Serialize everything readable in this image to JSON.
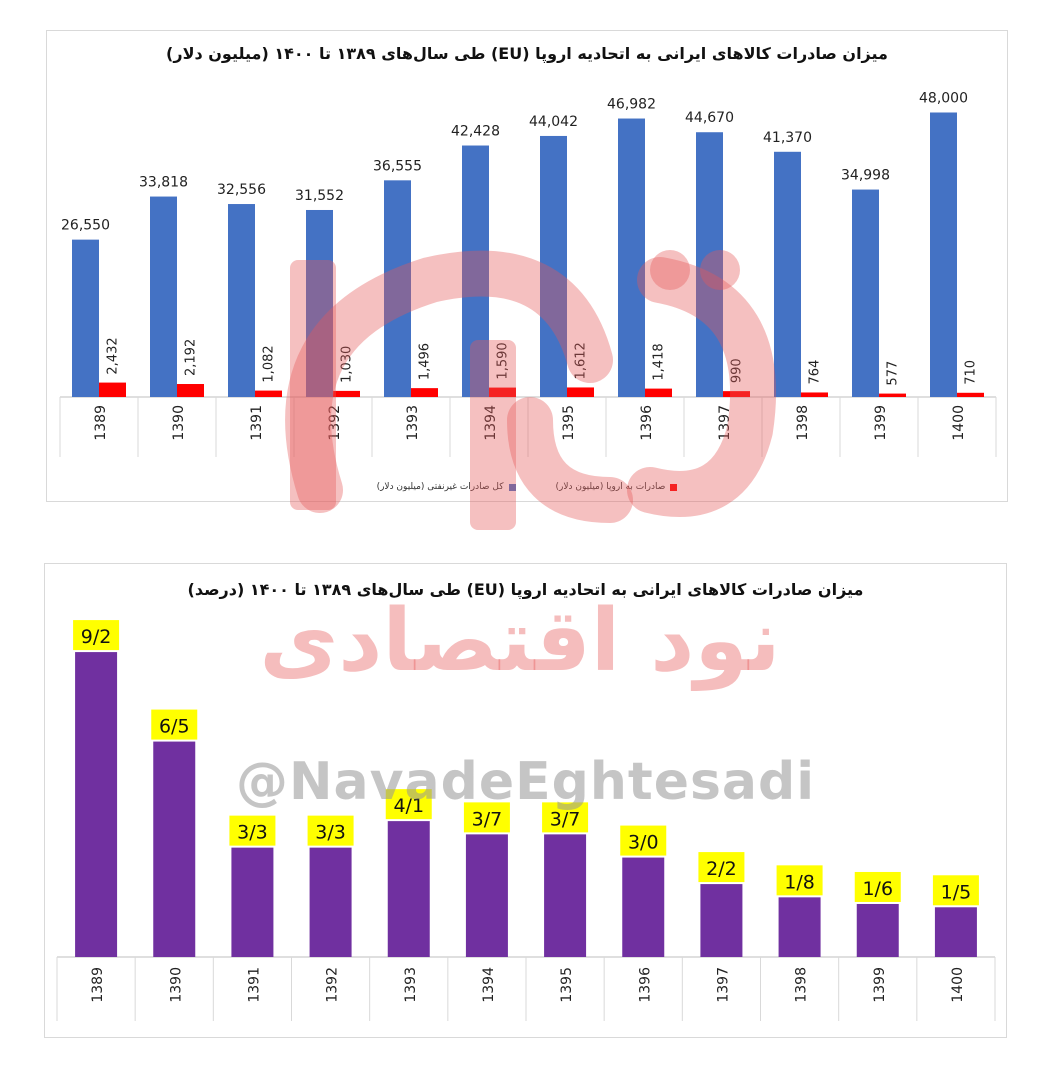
{
  "charts": [
    {
      "title": "میزان صادرات کالاهای ایرانی به اتحادیه اروپا (EU)  طی سال‌های ۱۳۸۹ تا ۱۴۰۰ (میلیون دلار)",
      "legend": [
        "صادرات به اروپا  (میلیون دلار)",
        "کل صادرات غیرنفتی  (میلیون دلار)"
      ]
    },
    {
      "title": "میزان صادرات کالاهای ایرانی به اتحادیه اروپا (EU)  طی سال‌های ۱۳۸۹ تا ۱۴۰۰ (درصد)"
    }
  ],
  "chart_data": [
    {
      "type": "bar",
      "title": "میزان صادرات کالاهای ایرانی به اتحادیه اروپا (EU)  طی سال‌های ۱۳۸۹ تا ۱۴۰۰ (میلیون دلار)",
      "categories": [
        "1389",
        "1390",
        "1391",
        "1392",
        "1393",
        "1394",
        "1395",
        "1396",
        "1397",
        "1398",
        "1399",
        "1400"
      ],
      "series": [
        {
          "name": "کل صادرات غیرنفتی  (میلیون دلار)",
          "values": [
            26550,
            33818,
            32556,
            31552,
            36555,
            42428,
            44042,
            46982,
            44670,
            41370,
            34998,
            48000
          ],
          "labels": [
            "26,550",
            "33,818",
            "32,556",
            "31,552",
            "36,555",
            "42,428",
            "44,042",
            "46,982",
            "44,670",
            "41,370",
            "34,998",
            "48,000"
          ],
          "color": "#4472C4"
        },
        {
          "name": "صادرات به اروپا  (میلیون دلار)",
          "values": [
            2432,
            2192,
            1082,
            1030,
            1496,
            1590,
            1612,
            1418,
            990,
            764,
            577,
            710
          ],
          "labels": [
            "2,432",
            "2,192",
            "1,082",
            "1,030",
            "1,496",
            "1,590",
            "1,612",
            "1,418",
            "990",
            "764",
            "577",
            "710"
          ],
          "color": "#FF0000"
        }
      ],
      "ylim": [
        0,
        55000
      ],
      "grid": false,
      "legend_position": "bottom"
    },
    {
      "type": "bar",
      "title": "میزان صادرات کالاهای ایرانی به اتحادیه اروپا (EU)  طی سال‌های ۱۳۸۹ تا ۱۴۰۰ (درصد)",
      "categories": [
        "1389",
        "1390",
        "1391",
        "1392",
        "1393",
        "1394",
        "1395",
        "1396",
        "1397",
        "1398",
        "1399",
        "1400"
      ],
      "series": [
        {
          "values": [
            9.2,
            6.5,
            3.3,
            3.3,
            4.1,
            3.7,
            3.7,
            3.0,
            2.2,
            1.8,
            1.6,
            1.5
          ],
          "labels": [
            "9/2",
            "6/5",
            "3/3",
            "3/3",
            "4/1",
            "3/7",
            "3/7",
            "3/0",
            "2/2",
            "1/8",
            "1/6",
            "1/5"
          ],
          "color": "#7030A0"
        }
      ],
      "label_background": "#FFFF00",
      "ylim": [
        0,
        10.5
      ],
      "grid": false
    }
  ],
  "watermark": {
    "brand_text": "نود اقتصادی",
    "handle": "@NavadeEghtesadi"
  }
}
